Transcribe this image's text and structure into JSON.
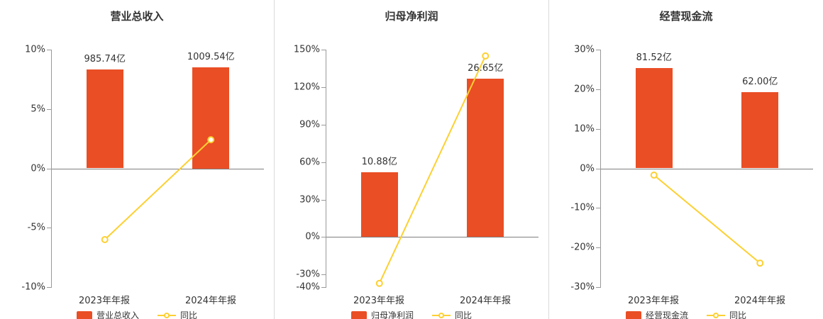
{
  "colors": {
    "bar": "#ea4e25",
    "line": "#fdd032",
    "marker_fill": "#ffffff",
    "axis": "#999999",
    "zero_line": "#7f7f7f",
    "text": "#333333",
    "divider": "#d9d9d9",
    "background": "#ffffff"
  },
  "chart_data": [
    {
      "type": "bar",
      "title": "营业总收入",
      "categories": [
        "2023年年报",
        "2024年年报"
      ],
      "bar_series": {
        "name": "营业总收入",
        "unit": "亿",
        "values": [
          985.74,
          1009.54
        ],
        "labels": [
          "985.74亿",
          "1009.54亿"
        ],
        "display_top_pct": [
          8.3,
          8.5
        ]
      },
      "line_series": {
        "name": "同比",
        "unit": "%",
        "values": [
          -6.0,
          2.41
        ]
      },
      "y_axis": {
        "min": -10,
        "max": 10,
        "ticks": [
          10,
          5,
          0,
          -5,
          -10
        ],
        "tick_labels": [
          "10%",
          "5%",
          "0%",
          "-5%",
          "-10%"
        ]
      },
      "legend": [
        "营业总收入",
        "同比"
      ]
    },
    {
      "type": "bar",
      "title": "归母净利润",
      "categories": [
        "2023年年报",
        "2024年年报"
      ],
      "bar_series": {
        "name": "归母净利润",
        "unit": "亿",
        "values": [
          10.88,
          26.65
        ],
        "labels": [
          "10.88亿",
          "26.65亿"
        ],
        "display_top_pct": [
          51.9,
          127
        ]
      },
      "line_series": {
        "name": "同比",
        "unit": "%",
        "values": [
          -37.0,
          144.94
        ]
      },
      "y_axis": {
        "min": -40,
        "max": 150,
        "ticks": [
          150,
          120,
          90,
          60,
          30,
          0,
          -30,
          -40
        ],
        "tick_labels": [
          "150%",
          "120%",
          "90%",
          "60%",
          "30%",
          "0%",
          "-30%",
          "-40%"
        ]
      },
      "legend": [
        "归母净利润",
        "同比"
      ]
    },
    {
      "type": "bar",
      "title": "经营现金流",
      "categories": [
        "2023年年报",
        "2024年年报"
      ],
      "bar_series": {
        "name": "经营现金流",
        "unit": "亿",
        "values": [
          81.52,
          62.0
        ],
        "labels": [
          "81.52亿",
          "62.00亿"
        ],
        "display_top_pct": [
          25.4,
          19.3
        ]
      },
      "line_series": {
        "name": "同比",
        "unit": "%",
        "values": [
          -1.7,
          -23.94
        ]
      },
      "y_axis": {
        "min": -30,
        "max": 30,
        "ticks": [
          30,
          20,
          10,
          0,
          -10,
          -20,
          -30
        ],
        "tick_labels": [
          "30%",
          "20%",
          "10%",
          "0%",
          "-10%",
          "-20%",
          "-30%"
        ]
      },
      "legend": [
        "经营现金流",
        "同比"
      ]
    }
  ]
}
